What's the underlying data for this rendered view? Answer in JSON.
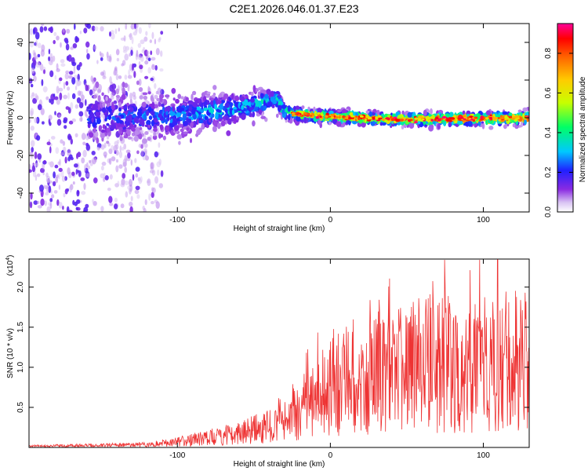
{
  "title": "C2E1.2026.046.01.37.E23",
  "chart_data": [
    {
      "type": "heatmap",
      "xlabel": "Height of straight line (km)",
      "ylabel": "Frequency (Hz)",
      "xlim": [
        -197,
        130
      ],
      "ylim": [
        -50,
        50
      ],
      "xticks": [
        -100,
        0,
        100
      ],
      "yticks": [
        -40,
        -20,
        0,
        20,
        40
      ],
      "colorbar": {
        "label": "Normalized spectral amplitude",
        "range": [
          0.0,
          0.95
        ],
        "ticks": [
          0.0,
          0.2,
          0.4,
          0.6,
          0.8
        ],
        "tick_labels": [
          "0.0",
          "0.2",
          "0.4",
          "0.6",
          "0.8"
        ],
        "colormap": [
          "#d9c4f3",
          "#8a2be2",
          "#2020ff",
          "#00c8ff",
          "#00ff66",
          "#c8ff00",
          "#ffcc00",
          "#ff6600",
          "#ff0000",
          "#ff0099"
        ]
      },
      "center_line": [
        {
          "x": -150,
          "freq": 0,
          "spread": 6,
          "amp": 0.22
        },
        {
          "x": -100,
          "freq": 1,
          "spread": 5,
          "amp": 0.28
        },
        {
          "x": -60,
          "freq": 5,
          "spread": 4,
          "amp": 0.35
        },
        {
          "x": -35,
          "freq": 10,
          "spread": 3,
          "amp": 0.32
        },
        {
          "x": -30,
          "freq": 3,
          "spread": 2,
          "amp": 0.45
        },
        {
          "x": -10,
          "freq": 1,
          "spread": 1.5,
          "amp": 0.7
        },
        {
          "x": 50,
          "freq": -1,
          "spread": 1.5,
          "amp": 0.75
        },
        {
          "x": 130,
          "freq": 0,
          "spread": 1.5,
          "amp": 0.8
        }
      ]
    },
    {
      "type": "line",
      "xlabel": "Height of straight line (km)",
      "ylabel": "SNR (10 * v/v)",
      "multiplier": "(x10",
      "multiplier_exp": "4",
      "xlim": [
        -197,
        130
      ],
      "ylim": [
        0,
        2.35
      ],
      "xticks": [
        -100,
        0,
        100
      ],
      "yticks": [
        0.5,
        1.0,
        1.5,
        2.0
      ],
      "ytick_labels": [
        "0.5",
        "1.0",
        "1.5",
        "2.0"
      ],
      "color": "#ee3333",
      "envelope": [
        {
          "x": -197,
          "y": 0.02
        },
        {
          "x": -120,
          "y": 0.04
        },
        {
          "x": -100,
          "y": 0.08
        },
        {
          "x": -80,
          "y": 0.14
        },
        {
          "x": -60,
          "y": 0.2
        },
        {
          "x": -40,
          "y": 0.32
        },
        {
          "x": -20,
          "y": 0.55
        },
        {
          "x": 0,
          "y": 0.85
        },
        {
          "x": 20,
          "y": 1.05
        },
        {
          "x": 50,
          "y": 1.15
        },
        {
          "x": 80,
          "y": 1.2
        },
        {
          "x": 110,
          "y": 1.25
        },
        {
          "x": 130,
          "y": 1.2
        }
      ]
    }
  ]
}
